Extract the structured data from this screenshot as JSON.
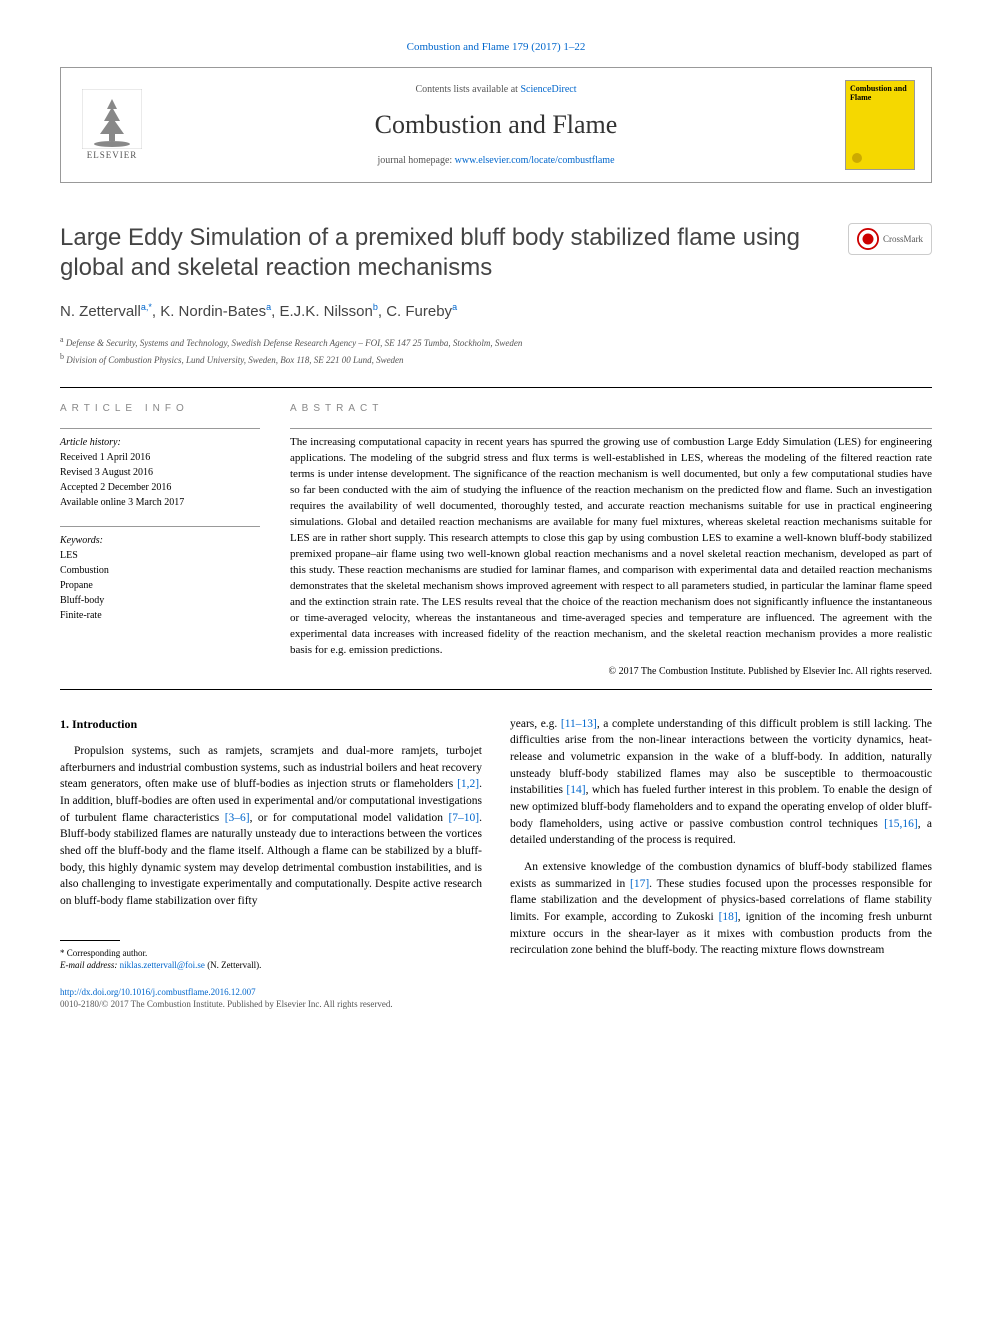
{
  "citation": "Combustion and Flame 179 (2017) 1–22",
  "header": {
    "contents_prefix": "Contents lists available at ",
    "contents_link": "ScienceDirect",
    "journal_name": "Combustion and Flame",
    "homepage_prefix": "journal homepage: ",
    "homepage_link": "www.elsevier.com/locate/combustflame",
    "elsevier": "ELSEVIER",
    "cover_title": "Combustion and Flame"
  },
  "crossmark": "CrossMark",
  "title": "Large Eddy Simulation of a premixed bluff body stabilized flame using global and skeletal reaction mechanisms",
  "authors_html": "N. Zettervall",
  "author_list": [
    {
      "name": "N. Zettervall",
      "sup": "a,*"
    },
    {
      "name": "K. Nordin-Bates",
      "sup": "a"
    },
    {
      "name": "E.J.K. Nilsson",
      "sup": "b"
    },
    {
      "name": "C. Fureby",
      "sup": "a"
    }
  ],
  "affiliations": [
    {
      "sup": "a",
      "text": "Defense & Security, Systems and Technology, Swedish Defense Research Agency – FOI, SE 147 25 Tumba, Stockholm, Sweden"
    },
    {
      "sup": "b",
      "text": "Division of Combustion Physics, Lund University, Sweden, Box 118, SE 221 00 Lund, Sweden"
    }
  ],
  "article_info": {
    "heading": "ARTICLE INFO",
    "history_label": "Article history:",
    "received": "Received 1 April 2016",
    "revised": "Revised 3 August 2016",
    "accepted": "Accepted 2 December 2016",
    "online": "Available online 3 March 2017",
    "keywords_label": "Keywords:",
    "keywords": [
      "LES",
      "Combustion",
      "Propane",
      "Bluff-body",
      "Finite-rate"
    ]
  },
  "abstract": {
    "heading": "ABSTRACT",
    "text": "The increasing computational capacity in recent years has spurred the growing use of combustion Large Eddy Simulation (LES) for engineering applications. The modeling of the subgrid stress and flux terms is well-established in LES, whereas the modeling of the filtered reaction rate terms is under intense development. The significance of the reaction mechanism is well documented, but only a few computational studies have so far been conducted with the aim of studying the influence of the reaction mechanism on the predicted flow and flame. Such an investigation requires the availability of well documented, thoroughly tested, and accurate reaction mechanisms suitable for use in practical engineering simulations. Global and detailed reaction mechanisms are available for many fuel mixtures, whereas skeletal reaction mechanisms suitable for LES are in rather short supply. This research attempts to close this gap by using combustion LES to examine a well-known bluff-body stabilized premixed propane–air flame using two well-known global reaction mechanisms and a novel skeletal reaction mechanism, developed as part of this study. These reaction mechanisms are studied for laminar flames, and comparison with experimental data and detailed reaction mechanisms demonstrates that the skeletal mechanism shows improved agreement with respect to all parameters studied, in particular the laminar flame speed and the extinction strain rate. The LES results reveal that the choice of the reaction mechanism does not significantly influence the instantaneous or time-averaged velocity, whereas the instantaneous and time-averaged species and temperature are influenced. The agreement with the experimental data increases with increased fidelity of the reaction mechanism, and the skeletal reaction mechanism provides a more realistic basis for e.g. emission predictions.",
    "copyright": "© 2017 The Combustion Institute. Published by Elsevier Inc. All rights reserved."
  },
  "intro": {
    "heading": "1. Introduction",
    "p1_a": "Propulsion systems, such as ramjets, scramjets and dual-more ramjets, turbojet afterburners and industrial combustion systems, such as industrial boilers and heat recovery steam generators, often make use of bluff-bodies as injection struts or flameholders ",
    "c1": "[1,2]",
    "p1_b": ". In addition, bluff-bodies are often used in experimental and/or computational investigations of turbulent flame characteristics ",
    "c2": "[3–6]",
    "p1_c": ", or for computational model validation ",
    "c3": "[7–10]",
    "p1_d": ". Bluff-body stabilized flames are naturally unsteady due to interactions between the vortices shed off the bluff-body and the flame itself. Although a flame can be stabilized by a bluff-body, this highly dynamic system may develop detrimental combustion instabilities, and is also challenging to investigate experimentally and computationally. Despite active research on bluff-body flame stabilization over fifty",
    "p2_a": "years, e.g. ",
    "c4": "[11–13]",
    "p2_b": ", a complete understanding of this difficult problem is still lacking. The difficulties arise from the non-linear interactions between the vorticity dynamics, heat-release and volumetric expansion in the wake of a bluff-body. In addition, naturally unsteady bluff-body stabilized flames may also be susceptible to thermoacoustic instabilities ",
    "c5": "[14]",
    "p2_c": ", which has fueled further interest in this problem. To enable the design of new optimized bluff-body flameholders and to expand the operating envelop of older bluff-body flameholders, using active or passive combustion control techniques ",
    "c6": "[15,16]",
    "p2_d": ", a detailed understanding of the process is required.",
    "p3_a": "An extensive knowledge of the combustion dynamics of bluff-body stabilized flames exists as summarized in ",
    "c7": "[17]",
    "p3_b": ". These studies focused upon the processes responsible for flame stabilization and the development of physics-based correlations of flame stability limits. For example, according to Zukoski ",
    "c8": "[18]",
    "p3_c": ", ignition of the incoming fresh unburnt mixture occurs in the shear-layer as it mixes with combustion products from the recirculation zone behind the bluff-body. The reacting mixture flows downstream"
  },
  "footnote": {
    "corr": "* Corresponding author.",
    "email_label": "E-mail address: ",
    "email": "niklas.zettervall@foi.se",
    "email_suffix": " (N. Zettervall)."
  },
  "footer": {
    "doi": "http://dx.doi.org/10.1016/j.combustflame.2016.12.007",
    "issn": "0010-2180/© 2017 The Combustion Institute. Published by Elsevier Inc. All rights reserved."
  },
  "colors": {
    "link": "#0066cc",
    "text": "#000000",
    "muted": "#555555",
    "orange": "#e67817",
    "cover_bg": "#f5d800"
  },
  "typography": {
    "body_size_pt": 11.5,
    "title_size_pt": 24,
    "journal_size_pt": 26,
    "abstract_size_pt": 11,
    "meta_size_pt": 10
  }
}
